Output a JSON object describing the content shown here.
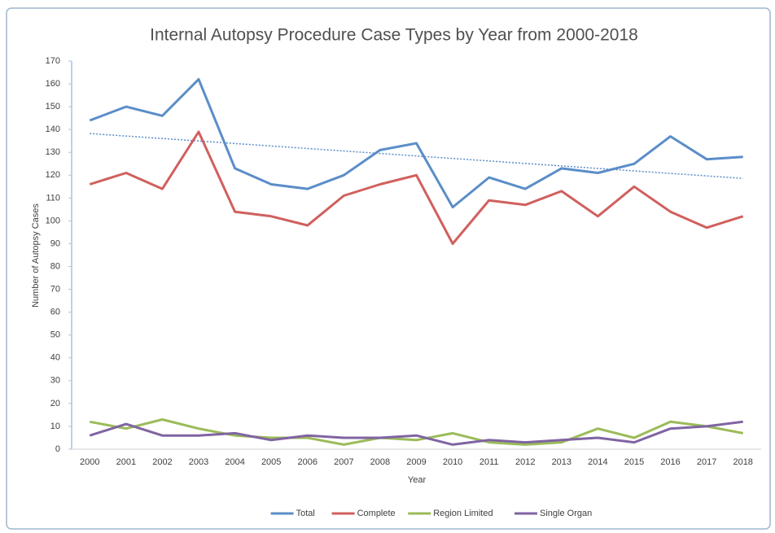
{
  "chart_data": {
    "type": "line",
    "title": "Internal Autopsy Procedure Case Types by Year from 2000-2018",
    "x_label": "Year",
    "y_label": "Number of Autopsy Cases",
    "categories": [
      "2000",
      "2001",
      "2002",
      "2003",
      "2004",
      "2005",
      "2006",
      "2007",
      "2008",
      "2009",
      "2010",
      "2011",
      "2012",
      "2013",
      "2014",
      "2015",
      "2016",
      "2017",
      "2018"
    ],
    "series": [
      {
        "name": "Total",
        "color": "#5b8dc8",
        "trendline": true,
        "values": [
          144,
          150,
          146,
          162,
          123,
          116,
          114,
          120,
          131,
          134,
          106,
          119,
          114,
          123,
          121,
          125,
          137,
          127,
          128
        ]
      },
      {
        "name": "Complete",
        "color": "#d0605e",
        "values": [
          116,
          121,
          114,
          139,
          104,
          102,
          98,
          111,
          116,
          120,
          90,
          109,
          107,
          113,
          102,
          115,
          104,
          97,
          102
        ]
      },
      {
        "name": "Region Limited",
        "color": "#9bbb59",
        "values": [
          12,
          9,
          13,
          9,
          6,
          5,
          5,
          2,
          5,
          4,
          7,
          3,
          2,
          3,
          9,
          5,
          12,
          10,
          7
        ]
      },
      {
        "name": "Single Organ",
        "color": "#8064a2",
        "values": [
          6,
          11,
          6,
          6,
          7,
          4,
          6,
          5,
          5,
          6,
          2,
          4,
          3,
          4,
          5,
          3,
          9,
          10,
          12
        ]
      }
    ],
    "ylim": [
      0,
      170
    ],
    "yticks": [
      0,
      10,
      20,
      30,
      40,
      50,
      60,
      70,
      80,
      90,
      100,
      110,
      120,
      130,
      140,
      150,
      160,
      170
    ],
    "grid": false,
    "legend": "bottom"
  }
}
